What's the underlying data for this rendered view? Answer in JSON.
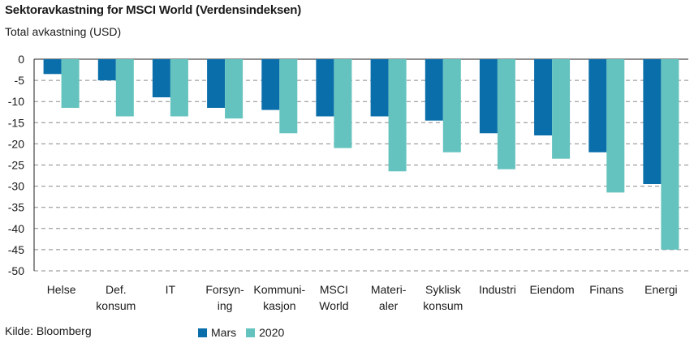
{
  "chart_data": {
    "type": "bar",
    "title": "Sektoravkastning for MSCI World (Verdensindeksen)",
    "ylabel": "Total avkastning (USD)",
    "xlabel": "",
    "source": "Kilde: Bloomberg",
    "ylim": [
      -50,
      0
    ],
    "yticks": [
      0,
      -5,
      -10,
      -15,
      -20,
      -25,
      -30,
      -35,
      -40,
      -45,
      -50
    ],
    "grid": true,
    "legend_position": "bottom",
    "categories": [
      [
        "Helse"
      ],
      [
        "Def.",
        "konsum"
      ],
      [
        "IT"
      ],
      [
        "Forsyn-",
        "ing"
      ],
      [
        "Kommuni-",
        "kasjon"
      ],
      [
        "MSCI",
        "World"
      ],
      [
        "Materi-",
        "aler"
      ],
      [
        "Syklisk",
        "konsum"
      ],
      [
        "Industri"
      ],
      [
        "Eiendom"
      ],
      [
        "Finans"
      ],
      [
        "Energi"
      ]
    ],
    "series": [
      {
        "name": "Mars",
        "color": "#0a6eaa",
        "values": [
          -3.5,
          -5,
          -9,
          -11.5,
          -12,
          -13.5,
          -13.5,
          -14.5,
          -17.5,
          -18,
          -22,
          -29.5
        ]
      },
      {
        "name": "2020",
        "color": "#64c3be",
        "values": [
          -11.5,
          -13.5,
          -13.5,
          -14,
          -17.5,
          -21,
          -26.5,
          -22,
          -26,
          -23.5,
          -31.5,
          -45
        ]
      }
    ]
  }
}
